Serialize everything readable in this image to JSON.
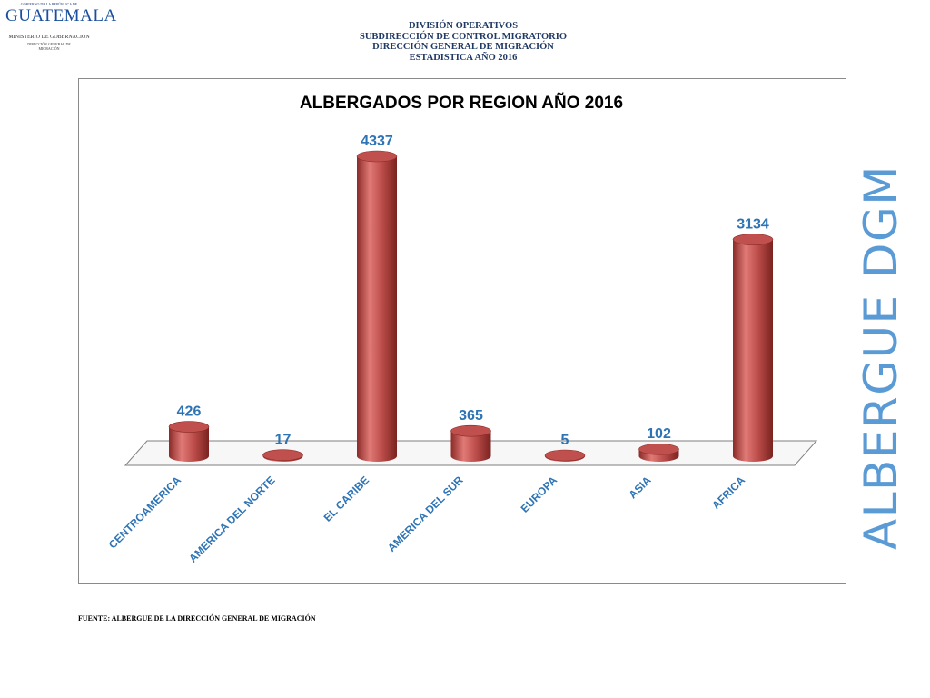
{
  "logo": {
    "small_text": "GOBIERNO DE LA REPÚBLICA DE",
    "brand": "GUATEMALA",
    "ministry": "MINISTERIO DE GOBERNACIÓN",
    "dependency_1": "DIRECCIÓN GENERAL DE",
    "dependency_2": "MIGRACIÓN"
  },
  "header": {
    "line1": "DIVISIÓN OPERATIVOS",
    "line2": "SUBDIRECCIÓN DE CONTROL MIGRATORIO",
    "line3": "DIRECCIÓN GENERAL DE MIGRACIÓN",
    "line4": "ESTADISTICA AÑO 2016"
  },
  "side_text": "ALBERGUE DGM",
  "source": "FUENTE: ALBERGUE DE LA DIRECCIÓN GENERAL DE MIGRACIÓN",
  "colors": {
    "bar": "#c0504d",
    "bar_dark": "#8b2a28",
    "bar_light": "#e07a76",
    "data_label": "#2e74b5",
    "category_label": "#2e74b5",
    "side_text": "#5b9bd5",
    "header_text": "#1f3864"
  },
  "chart_data": {
    "type": "bar",
    "style": "3d-cylinder",
    "title": "ALBERGADOS POR REGION AÑO 2016",
    "categories": [
      "CENTROAMERICA",
      "AMERICA DEL NORTE",
      "EL CARIBE",
      "AMERICA DEL SUR",
      "EUROPA",
      "ASIA",
      "AFRICA"
    ],
    "values": [
      426,
      17,
      4337,
      365,
      5,
      102,
      3134
    ],
    "xlabel": "",
    "ylabel": "",
    "ylim": [
      0,
      4337
    ],
    "grid": false,
    "legend": "none",
    "data_labels": true
  }
}
